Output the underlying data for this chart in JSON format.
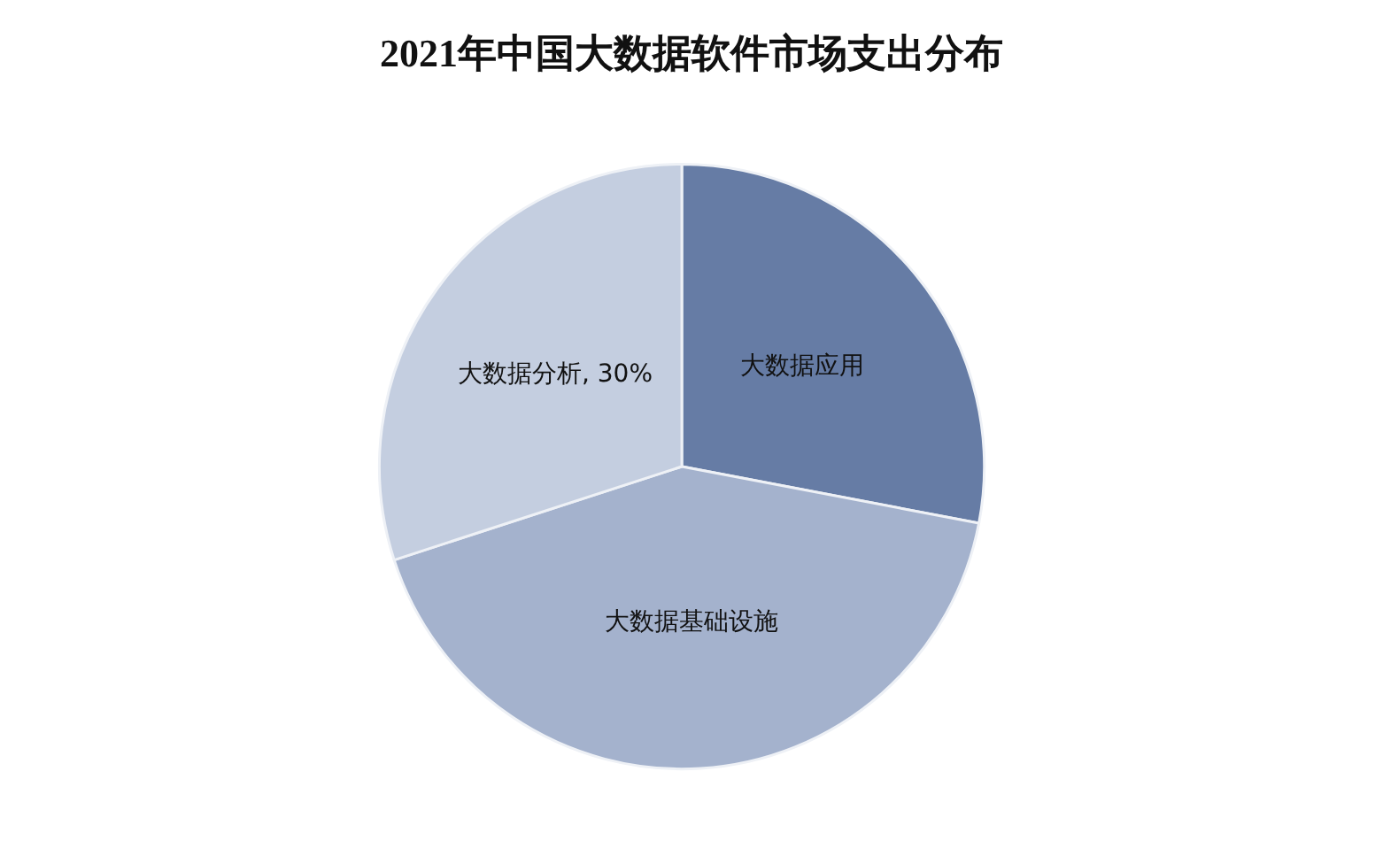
{
  "chart_data": {
    "type": "pie",
    "title": "2021年中国大数据软件市场支出分布",
    "categories": [
      "大数据应用",
      "大数据基础设施",
      "大数据分析"
    ],
    "values": [
      28,
      42,
      30
    ],
    "value_labels": [
      null,
      null,
      "30%"
    ],
    "colors": [
      "#667ca5",
      "#a4b2cd",
      "#c4cee0"
    ]
  }
}
